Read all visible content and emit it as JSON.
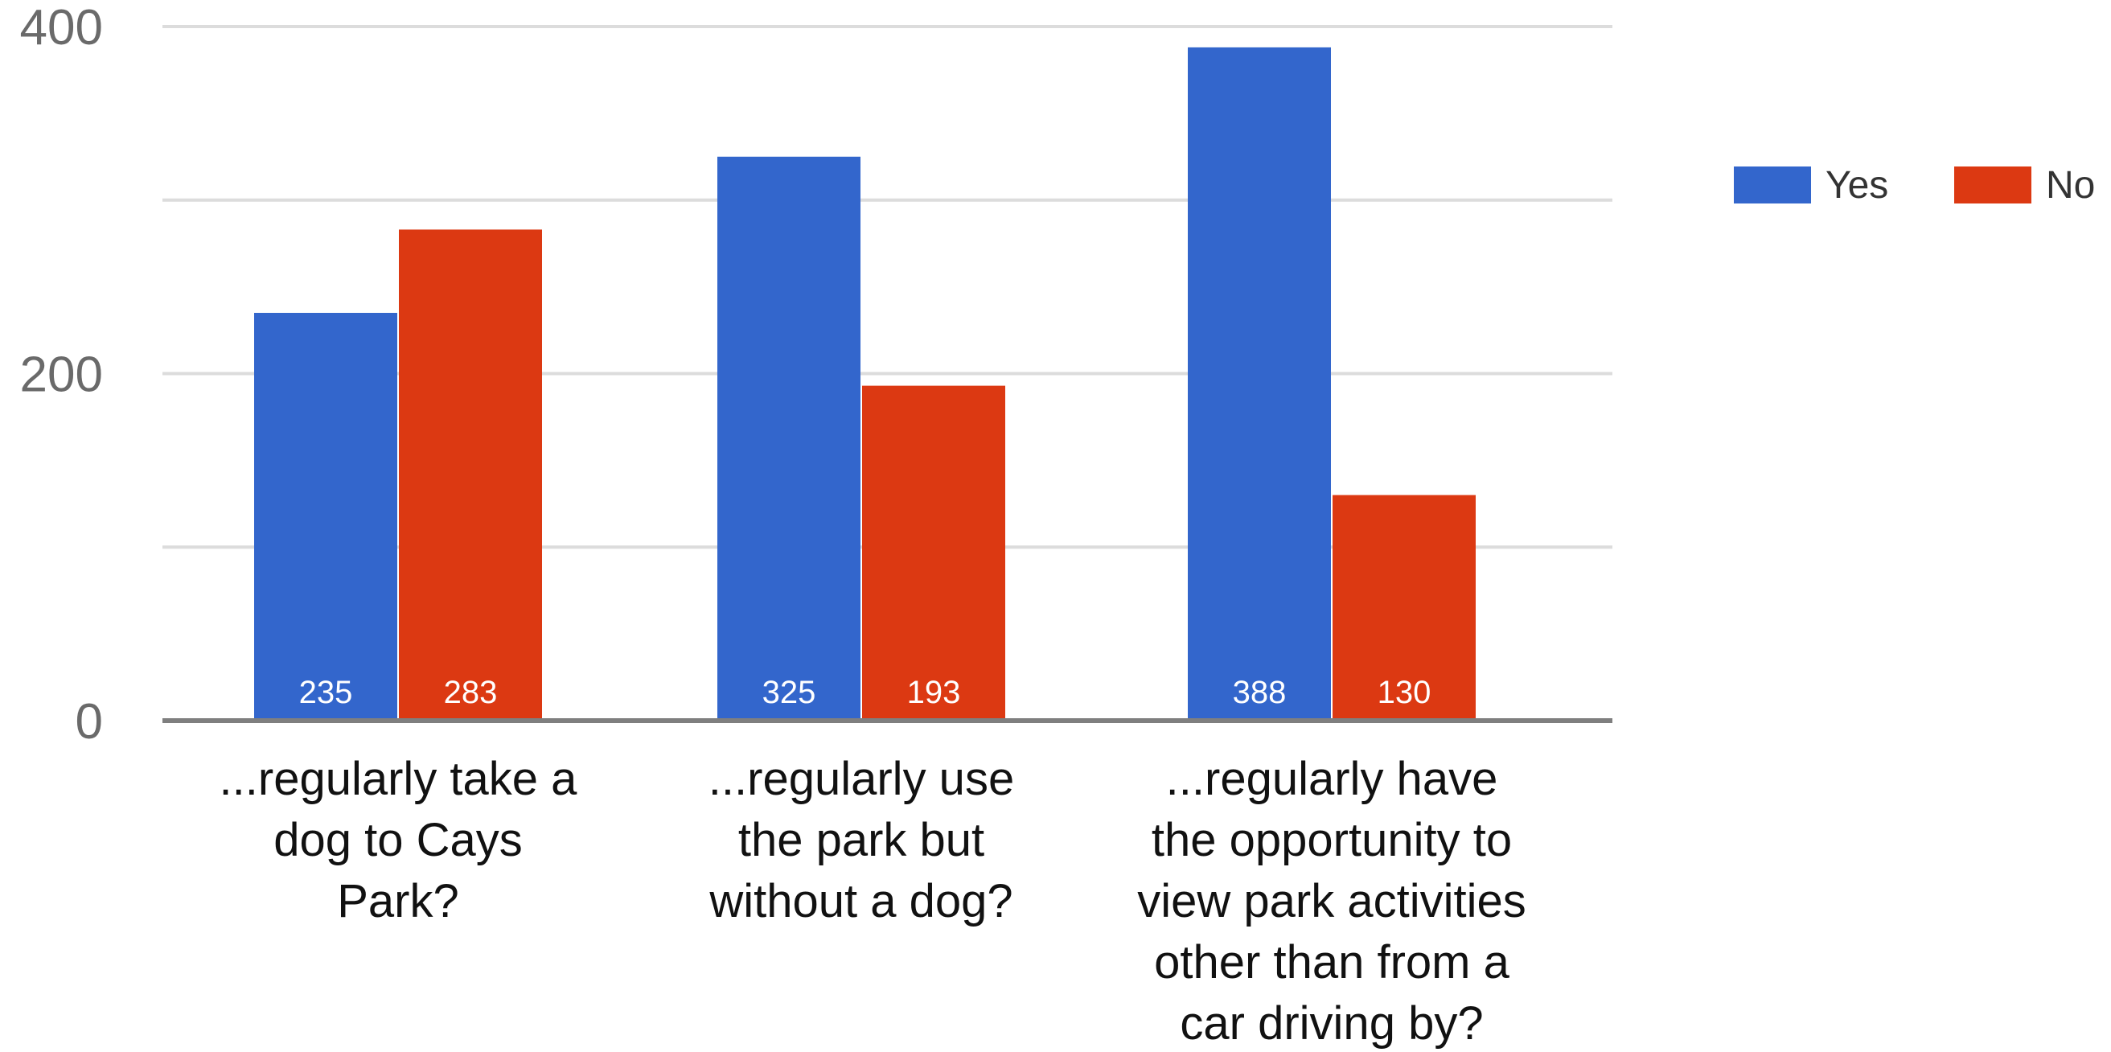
{
  "chart_data": {
    "type": "bar",
    "title": "",
    "xlabel": "",
    "ylabel": "",
    "ylim": [
      0,
      400
    ],
    "yticks": [
      "0",
      "200",
      "400"
    ],
    "grid": true,
    "legend_position": "right",
    "categories": [
      "...regularly take a dog to Cays Park?",
      "...regularly use the park but without a dog?",
      "...regularly have the opportunity to view park activities other than from a car driving by?"
    ],
    "category_lines": [
      [
        "...regularly take a",
        "dog to Cays",
        "Park?"
      ],
      [
        "...regularly use",
        "the park but",
        "without a dog?"
      ],
      [
        "...regularly have",
        "the opportunity to",
        "view park activities",
        "other than from a",
        "car driving by?"
      ]
    ],
    "series": [
      {
        "name": "Yes",
        "color": "#3366cc",
        "values": [
          235,
          325,
          388
        ]
      },
      {
        "name": "No",
        "color": "#dc3912",
        "values": [
          283,
          193,
          130
        ]
      }
    ]
  }
}
